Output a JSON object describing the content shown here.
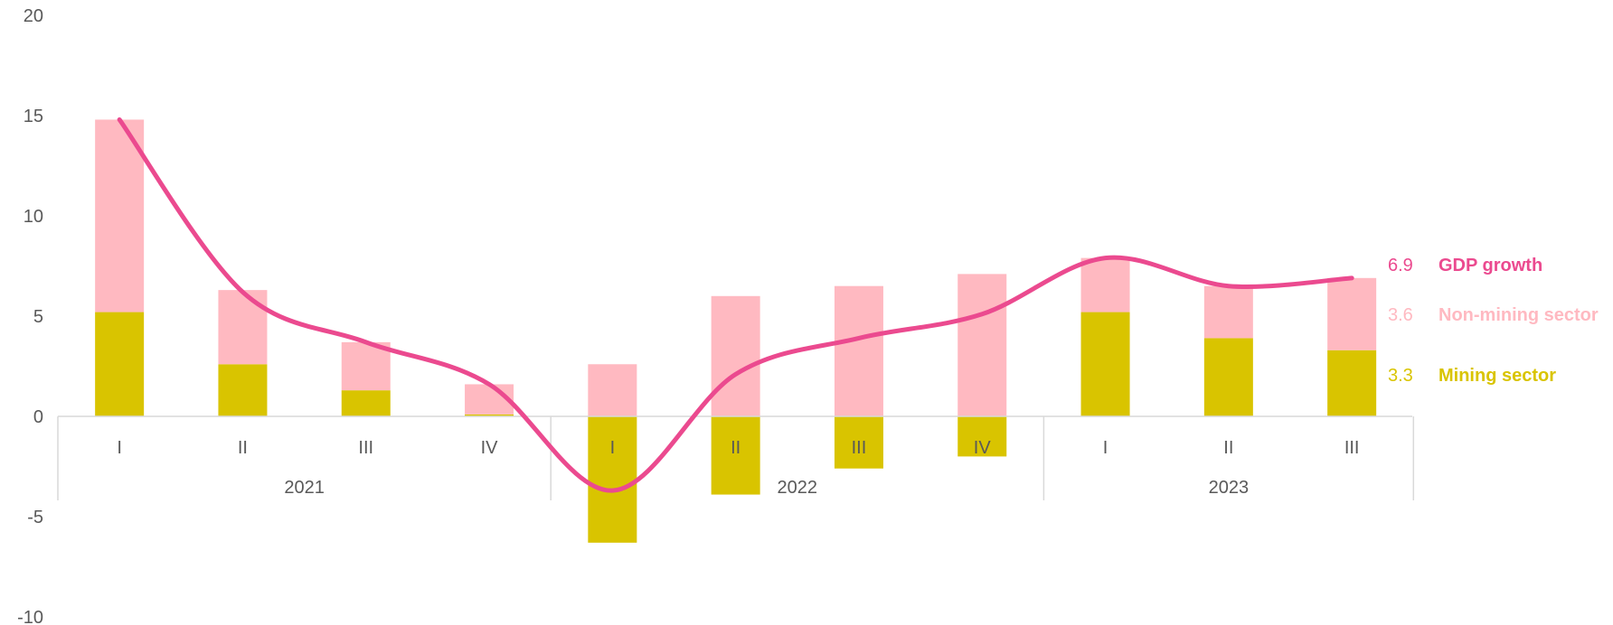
{
  "chart_data": {
    "type": "bar",
    "stacked": true,
    "title": "",
    "xlabel": "",
    "ylabel": "",
    "ylim": [
      -10,
      20
    ],
    "yticks": [
      -10,
      -5,
      0,
      5,
      10,
      15,
      20
    ],
    "grid": false,
    "legend": "right, end-of-series labels",
    "categories": [
      "I",
      "II",
      "III",
      "IV",
      "I",
      "II",
      "III",
      "IV",
      "I",
      "II",
      "III"
    ],
    "groups": [
      {
        "label": "2021",
        "count": 4
      },
      {
        "label": "2022",
        "count": 4
      },
      {
        "label": "2023",
        "count": 3
      }
    ],
    "series": [
      {
        "name": "Mining sector",
        "type": "bar",
        "color": "#d9c400",
        "values": [
          5.2,
          2.6,
          1.3,
          0.1,
          -6.3,
          -3.9,
          -2.6,
          -2.0,
          5.2,
          3.9,
          3.3
        ]
      },
      {
        "name": "Non-mining sector",
        "type": "bar",
        "color": "#ffb9c1",
        "values": [
          9.6,
          3.7,
          2.4,
          1.5,
          2.6,
          6.0,
          6.5,
          7.1,
          2.7,
          2.6,
          3.6
        ]
      },
      {
        "name": "GDP growth",
        "type": "line",
        "color": "#eb4a8f",
        "values": [
          14.8,
          6.2,
          3.7,
          1.6,
          -3.7,
          2.1,
          3.9,
          5.1,
          7.9,
          6.5,
          6.9
        ]
      }
    ],
    "end_labels": [
      {
        "series": "GDP growth",
        "value": "6.9",
        "color": "#eb4a8f"
      },
      {
        "series": "Non-mining sector",
        "value": "3.6",
        "color": "#ffb9c1"
      },
      {
        "series": "Mining sector",
        "value": "3.3",
        "color": "#d9c400"
      }
    ]
  }
}
